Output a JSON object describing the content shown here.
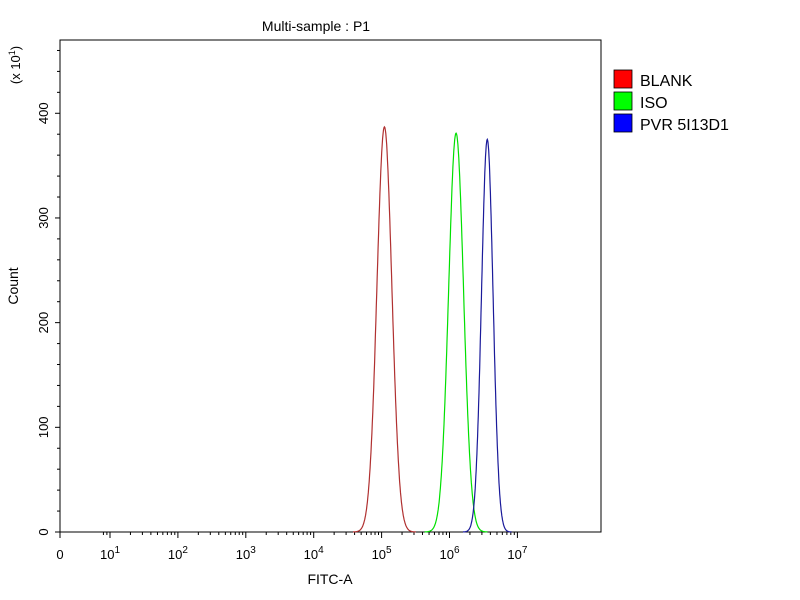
{
  "chart_data": {
    "type": "area",
    "title": "Multi-sample : P1",
    "xlabel": "FITC-A",
    "ylabel": "Count",
    "y_multiplier_label": "(x 10^1)",
    "x_scale": "log (biexponential, 0 at left)",
    "x_ticks": [
      {
        "value": 0,
        "base": "0",
        "exp": ""
      },
      {
        "value": 10,
        "base": "10",
        "exp": "1"
      },
      {
        "value": 100,
        "base": "10",
        "exp": "2"
      },
      {
        "value": 1000,
        "base": "10",
        "exp": "3"
      },
      {
        "value": 10000,
        "base": "10",
        "exp": "4"
      },
      {
        "value": 100000,
        "base": "10",
        "exp": "5"
      },
      {
        "value": 1000000,
        "base": "10",
        "exp": "6"
      },
      {
        "value": 10000000,
        "base": "10",
        "exp": "7"
      }
    ],
    "y_ticks": [
      0,
      100,
      200,
      300,
      400
    ],
    "ylim": [
      0,
      470
    ],
    "grid": false,
    "legend_position": "right",
    "series": [
      {
        "name": "BLANK",
        "color": "#b03030",
        "legend_color": "#ff0000",
        "peak_x": 110000,
        "peak_count": 387,
        "spread_decades": 0.11
      },
      {
        "name": "ISO",
        "color": "#00e000",
        "legend_color": "#00ff00",
        "peak_x": 1250000,
        "peak_count": 381,
        "spread_decades": 0.11
      },
      {
        "name": "PVR 5I13D1",
        "color": "#1a1a9a",
        "legend_color": "#0000ff",
        "peak_x": 3600000,
        "peak_count": 375,
        "spread_decades": 0.085
      }
    ]
  }
}
